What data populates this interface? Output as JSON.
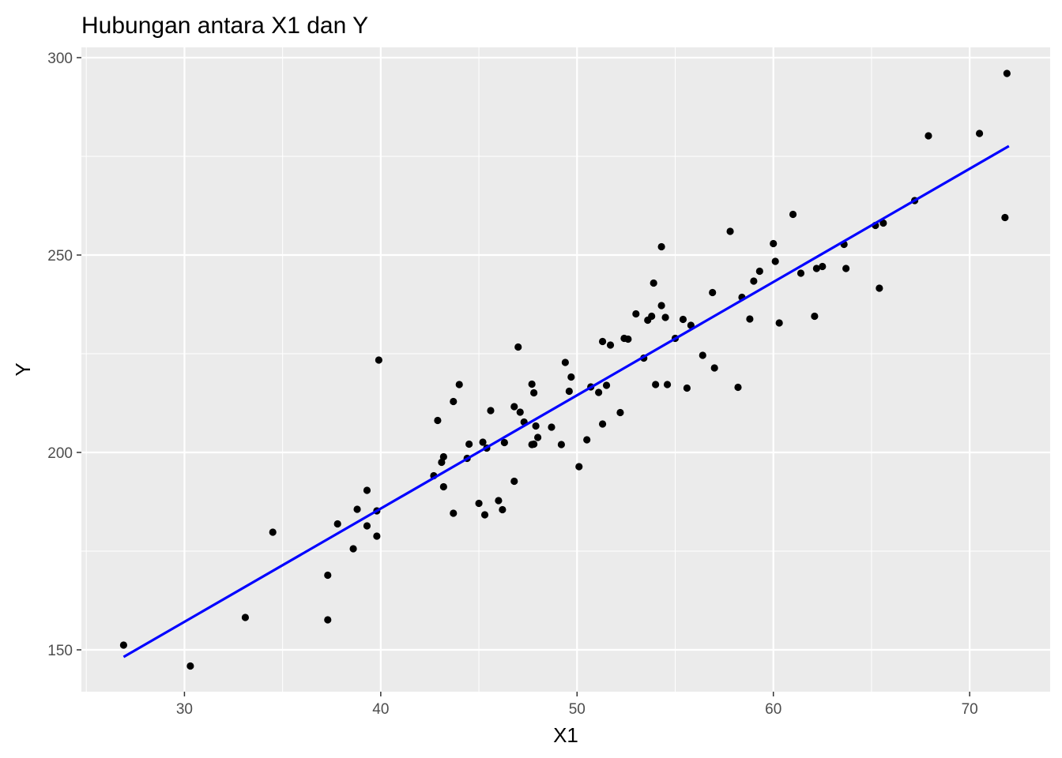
{
  "chart_data": {
    "type": "scatter",
    "title": "Hubungan antara X1 dan Y",
    "xlabel": "X1",
    "ylabel": "Y",
    "xlim": [
      24.75,
      74.1
    ],
    "ylim": [
      139.4,
      302.6
    ],
    "x_ticks": [
      30,
      40,
      50,
      60,
      70
    ],
    "y_ticks": [
      150,
      200,
      250,
      300
    ],
    "x_tick_labels": [
      "30",
      "40",
      "50",
      "60",
      "70"
    ],
    "y_tick_labels": [
      "150",
      "200",
      "250",
      "300"
    ],
    "grid": true,
    "panel_background": "#ebebeb",
    "grid_color": "#ffffff",
    "point_color": "#000000",
    "line_color": "#0000ff",
    "trend_line": {
      "x": [
        26.9,
        72.0
      ],
      "y": [
        148.2,
        277.6
      ]
    },
    "points": [
      [
        26.9,
        151.2
      ],
      [
        30.3,
        145.9
      ],
      [
        33.1,
        158.2
      ],
      [
        34.5,
        179.8
      ],
      [
        37.3,
        168.9
      ],
      [
        37.3,
        157.6
      ],
      [
        37.8,
        181.9
      ],
      [
        38.6,
        175.6
      ],
      [
        38.8,
        185.6
      ],
      [
        39.3,
        190.4
      ],
      [
        39.3,
        181.4
      ],
      [
        39.8,
        185.2
      ],
      [
        39.8,
        178.8
      ],
      [
        39.9,
        223.4
      ],
      [
        42.7,
        194.1
      ],
      [
        42.9,
        208.1
      ],
      [
        43.1,
        197.5
      ],
      [
        43.2,
        198.9
      ],
      [
        43.2,
        191.3
      ],
      [
        43.7,
        212.9
      ],
      [
        43.7,
        184.6
      ],
      [
        44.0,
        217.2
      ],
      [
        44.4,
        198.5
      ],
      [
        44.5,
        202.1
      ],
      [
        45.0,
        187.1
      ],
      [
        45.2,
        202.6
      ],
      [
        45.3,
        184.2
      ],
      [
        45.4,
        201.1
      ],
      [
        45.6,
        210.6
      ],
      [
        46.0,
        187.8
      ],
      [
        46.2,
        185.5
      ],
      [
        46.3,
        202.5
      ],
      [
        46.8,
        192.7
      ],
      [
        46.8,
        211.6
      ],
      [
        47.0,
        226.7
      ],
      [
        47.1,
        210.2
      ],
      [
        47.3,
        207.7
      ],
      [
        47.7,
        202.0
      ],
      [
        47.7,
        217.3
      ],
      [
        47.8,
        215.1
      ],
      [
        47.8,
        202.1
      ],
      [
        47.9,
        206.7
      ],
      [
        48.0,
        203.8
      ],
      [
        48.7,
        206.4
      ],
      [
        49.2,
        202.0
      ],
      [
        49.4,
        222.8
      ],
      [
        49.6,
        215.5
      ],
      [
        49.7,
        219.1
      ],
      [
        50.1,
        196.4
      ],
      [
        50.5,
        203.2
      ],
      [
        50.7,
        216.6
      ],
      [
        51.1,
        215.2
      ],
      [
        51.3,
        228.1
      ],
      [
        51.3,
        207.2
      ],
      [
        51.5,
        217.0
      ],
      [
        51.7,
        227.2
      ],
      [
        52.2,
        210.1
      ],
      [
        52.4,
        228.9
      ],
      [
        52.6,
        228.7
      ],
      [
        53.0,
        235.1
      ],
      [
        53.4,
        223.9
      ],
      [
        53.6,
        233.5
      ],
      [
        53.8,
        234.5
      ],
      [
        53.9,
        242.9
      ],
      [
        54.0,
        217.2
      ],
      [
        54.3,
        252.1
      ],
      [
        54.3,
        237.2
      ],
      [
        54.5,
        234.2
      ],
      [
        54.6,
        217.2
      ],
      [
        55.0,
        228.9
      ],
      [
        55.4,
        233.7
      ],
      [
        55.6,
        216.3
      ],
      [
        55.8,
        232.2
      ],
      [
        56.4,
        224.6
      ],
      [
        56.9,
        240.5
      ],
      [
        57.0,
        221.4
      ],
      [
        57.8,
        256.0
      ],
      [
        58.2,
        216.5
      ],
      [
        58.4,
        239.3
      ],
      [
        58.8,
        233.8
      ],
      [
        59.0,
        243.4
      ],
      [
        59.3,
        245.9
      ],
      [
        60.0,
        252.9
      ],
      [
        60.1,
        248.4
      ],
      [
        60.3,
        232.8
      ],
      [
        61.0,
        260.3
      ],
      [
        61.4,
        245.4
      ],
      [
        62.1,
        234.5
      ],
      [
        62.2,
        246.6
      ],
      [
        62.5,
        247.1
      ],
      [
        63.6,
        252.7
      ],
      [
        63.7,
        246.6
      ],
      [
        65.2,
        257.5
      ],
      [
        65.4,
        241.6
      ],
      [
        65.6,
        258.1
      ],
      [
        67.2,
        263.8
      ],
      [
        67.9,
        280.2
      ],
      [
        70.5,
        280.8
      ],
      [
        71.8,
        259.5
      ],
      [
        71.9,
        296.0
      ]
    ]
  }
}
